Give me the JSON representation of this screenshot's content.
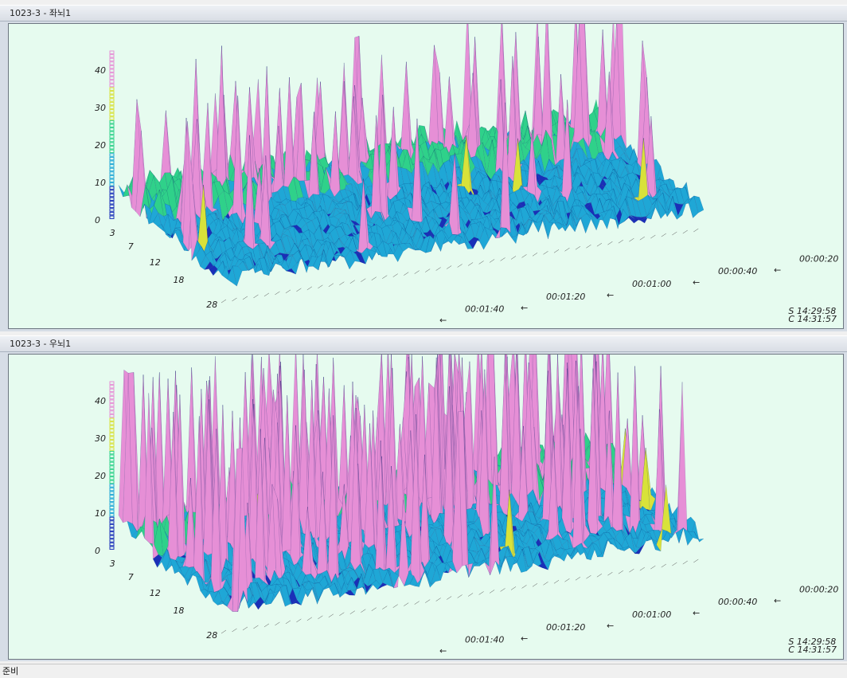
{
  "panels": [
    {
      "title": "1023-3 - 좌뇌1",
      "z_ticks": [
        "0",
        "10",
        "20",
        "30",
        "40"
      ],
      "depth_ticks": [
        "3",
        "7",
        "12",
        "18",
        "28"
      ],
      "time_ticks": [
        "00:00:20",
        "00:00:40",
        "00:01:00",
        "00:01:20",
        "00:01:40"
      ],
      "stamp_start": "S 14:29:58",
      "stamp_current": "C 14:31:57"
    },
    {
      "title": "1023-3 - 우뇌1",
      "z_ticks": [
        "0",
        "10",
        "20",
        "30",
        "40"
      ],
      "depth_ticks": [
        "3",
        "7",
        "12",
        "18",
        "28"
      ],
      "time_ticks": [
        "00:00:20",
        "00:00:40",
        "00:01:00",
        "00:01:20",
        "00:01:40"
      ],
      "stamp_start": "S 14:29:58",
      "stamp_current": "C 14:31:57"
    }
  ],
  "status": {
    "text": "준비"
  },
  "colors": {
    "plot_bg": "#e6fbef",
    "low": "#1a2fb8",
    "mid_low": "#1fa7d6",
    "mid": "#2fd18a",
    "mid_high": "#d8e23a",
    "high": "#e68fd6"
  }
}
